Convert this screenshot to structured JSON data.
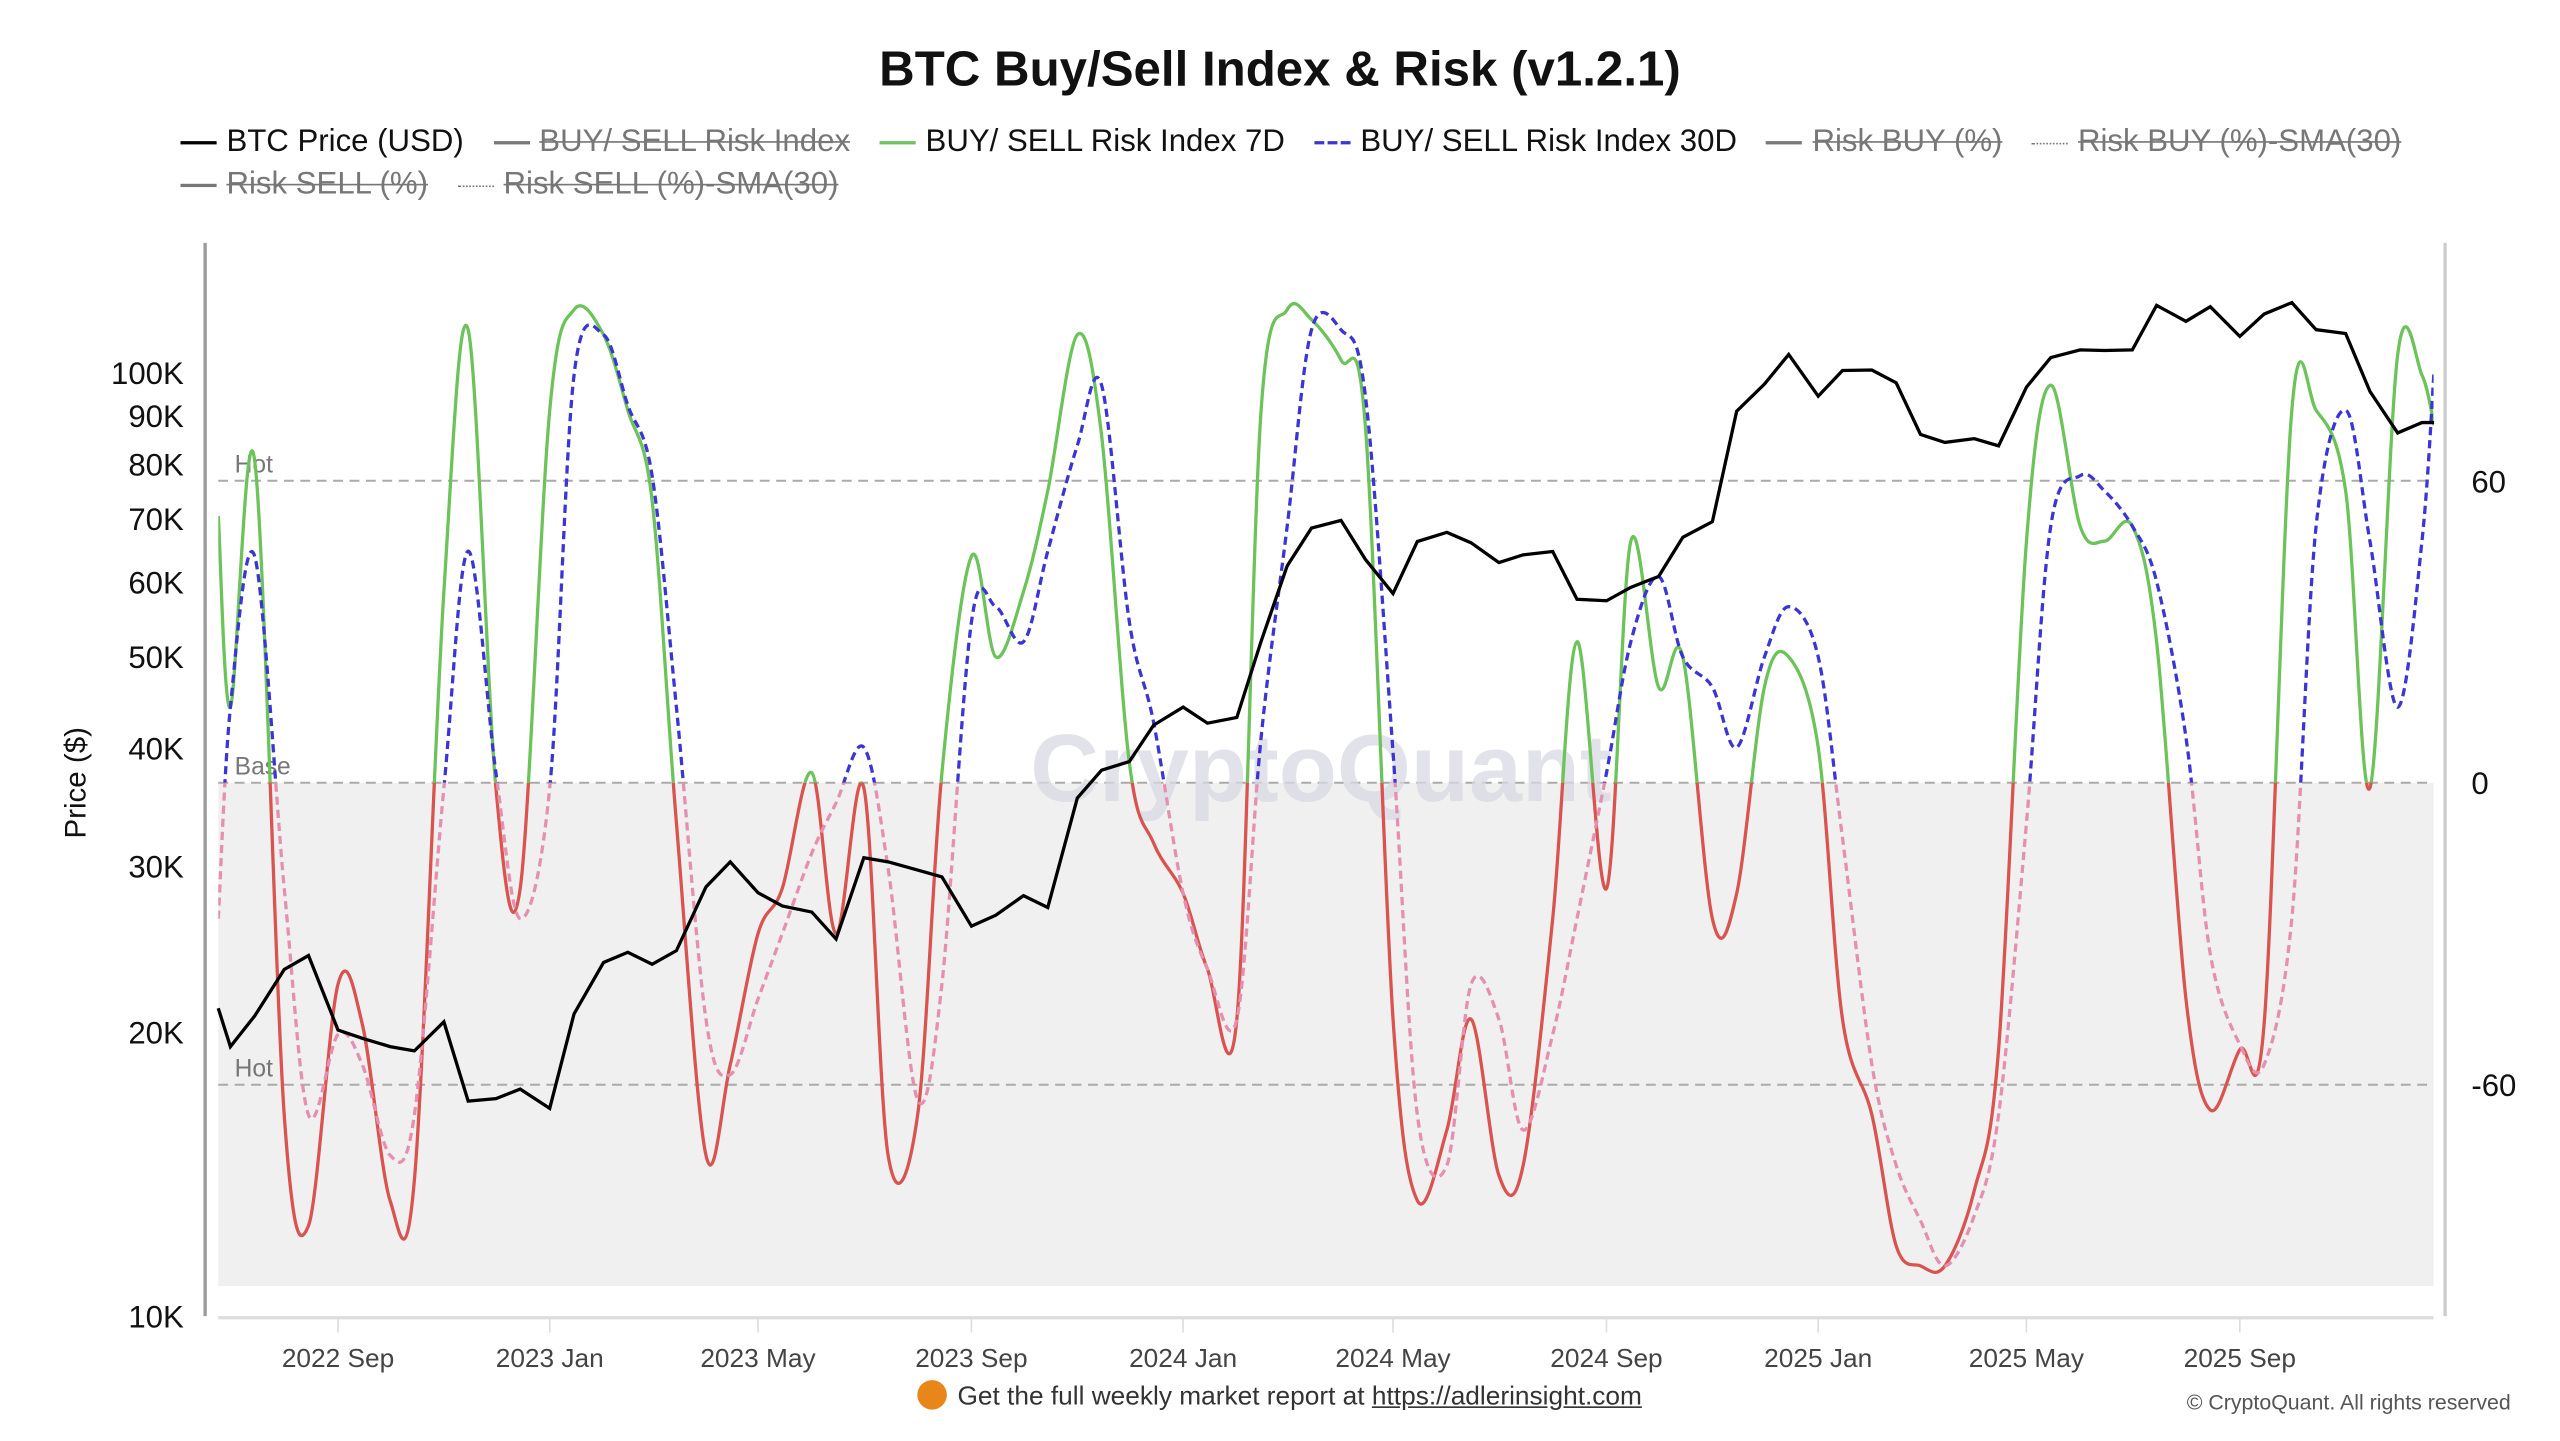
{
  "title": "BTC Buy/Sell Index & Risk (v1.2.1)",
  "legend": [
    {
      "label": "BTC Price (USD)",
      "color": "#000000",
      "style": "solid",
      "visible": true
    },
    {
      "label": "BUY/ SELL Risk Index",
      "color": "#777777",
      "style": "solid",
      "visible": false
    },
    {
      "label": "BUY/ SELL Risk Index 7D",
      "color": "#6cc35a",
      "style": "solid",
      "visible": true
    },
    {
      "label": "BUY/ SELL Risk Index 30D",
      "color": "#3b35d4",
      "style": "dashed",
      "visible": true
    },
    {
      "label": "Risk BUY (%)",
      "color": "#777777",
      "style": "solid",
      "visible": false
    },
    {
      "label": "Risk BUY (%)-SMA(30)",
      "color": "#777777",
      "style": "dotted",
      "visible": false
    },
    {
      "label": "Risk SELL (%)",
      "color": "#777777",
      "style": "solid",
      "visible": false
    },
    {
      "label": "Risk SELL (%)-SMA(30)",
      "color": "#777777",
      "style": "dotted",
      "visible": false
    }
  ],
  "footer": {
    "text": "Get the full weekly market report at",
    "link": "https://adlerinsight.com",
    "copyright": "© CryptoQuant. All rights reserved",
    "watermark": "CryptoQuant"
  },
  "chart_data": {
    "type": "line",
    "title": "BTC Buy/Sell Index & Risk (v1.2.1)",
    "ylabel_left": "Price ($)",
    "left_axis": {
      "scale": "log",
      "range": [
        10000,
        137000
      ],
      "ticks": [
        10000,
        20000,
        30000,
        40000,
        50000,
        60000,
        70000,
        80000,
        90000,
        100000
      ],
      "tick_labels": [
        "10K",
        "20K",
        "30K",
        "40K",
        "50K",
        "60K",
        "70K",
        "80K",
        "90K",
        "100K"
      ]
    },
    "right_axis": {
      "scale": "linear",
      "range": [
        -105,
        107
      ],
      "ticks": [
        -60,
        0,
        60
      ],
      "tick_labels": [
        "-60",
        "0",
        "60"
      ]
    },
    "x_ticks": [
      "2022-09-01",
      "2023-01-01",
      "2023-05-01",
      "2023-09-01",
      "2024-01-01",
      "2024-05-01",
      "2024-09-01",
      "2025-01-01",
      "2025-05-01",
      "2025-09-01"
    ],
    "x_tick_labels": [
      "2022 Sep",
      "2023 Jan",
      "2023 May",
      "2023 Sep",
      "2024 Jan",
      "2024 May",
      "2024 Sep",
      "2025 Jan",
      "2025 May",
      "2025 Sep"
    ],
    "x_range": [
      "2022-06-24",
      "2025-12-22"
    ],
    "bands": [
      {
        "label": "Hot",
        "value": 60
      },
      {
        "label": "Base",
        "value": 0
      },
      {
        "label": "Hot",
        "value": -60
      }
    ],
    "shaded_range": [
      -100,
      0
    ],
    "colors": {
      "price": "#000000",
      "index7d_pos": "#6cc35a",
      "index7d_neg": "#d9534f",
      "index30d_pos": "#3b35d4",
      "index30d_neg": "#e68fb0",
      "shade": "#f0f0f0",
      "band": "#aaaaaa"
    },
    "grid": false,
    "legend_position": "top-left",
    "dates": [
      "2022-06-24",
      "2022-07-01",
      "2022-07-15",
      "2022-08-01",
      "2022-08-15",
      "2022-09-01",
      "2022-09-15",
      "2022-10-01",
      "2022-10-15",
      "2022-11-01",
      "2022-11-15",
      "2022-12-01",
      "2022-12-15",
      "2023-01-01",
      "2023-01-15",
      "2023-02-01",
      "2023-02-15",
      "2023-03-01",
      "2023-03-15",
      "2023-04-01",
      "2023-04-15",
      "2023-05-01",
      "2023-05-15",
      "2023-06-01",
      "2023-06-15",
      "2023-07-01",
      "2023-07-15",
      "2023-08-01",
      "2023-08-15",
      "2023-09-01",
      "2023-09-15",
      "2023-10-01",
      "2023-10-15",
      "2023-11-01",
      "2023-11-15",
      "2023-12-01",
      "2023-12-15",
      "2024-01-01",
      "2024-01-15",
      "2024-02-01",
      "2024-02-15",
      "2024-03-01",
      "2024-03-15",
      "2024-04-01",
      "2024-04-15",
      "2024-05-01",
      "2024-05-15",
      "2024-06-01",
      "2024-06-15",
      "2024-07-01",
      "2024-07-15",
      "2024-08-01",
      "2024-08-15",
      "2024-09-01",
      "2024-09-15",
      "2024-10-01",
      "2024-10-15",
      "2024-11-01",
      "2024-11-15",
      "2024-12-01",
      "2024-12-15",
      "2025-01-01",
      "2025-01-15",
      "2025-02-01",
      "2025-02-15",
      "2025-03-01",
      "2025-03-15",
      "2025-04-01",
      "2025-04-15",
      "2025-05-01",
      "2025-05-15",
      "2025-06-01",
      "2025-06-15",
      "2025-07-01",
      "2025-07-15",
      "2025-08-01",
      "2025-08-15",
      "2025-09-01",
      "2025-09-15",
      "2025-10-01",
      "2025-10-15",
      "2025-11-01",
      "2025-11-15",
      "2025-12-01",
      "2025-12-15",
      "2025-12-22"
    ],
    "series": [
      {
        "name": "BTC Price (USD)",
        "axis": "left",
        "values": [
          21200,
          19300,
          20800,
          23300,
          24100,
          20100,
          19700,
          19300,
          19100,
          20500,
          16900,
          17000,
          17400,
          16600,
          20900,
          23700,
          24300,
          23600,
          24400,
          28500,
          30300,
          28100,
          27200,
          26800,
          25100,
          30600,
          30300,
          29700,
          29200,
          25900,
          26600,
          27900,
          27100,
          35400,
          37900,
          38700,
          42300,
          44200,
          42500,
          43100,
          51900,
          62400,
          68400,
          69700,
          63400,
          58300,
          66200,
          67700,
          66000,
          62900,
          64100,
          64600,
          57500,
          57300,
          59200,
          60800,
          66900,
          69500,
          91000,
          97200,
          104500,
          94400,
          100500,
          100600,
          97500,
          86000,
          84300,
          85100,
          83600,
          96500,
          103700,
          105700,
          105500,
          105700,
          117800,
          113300,
          117400,
          109200,
          115300,
          118600,
          111000,
          110000,
          95500,
          86300,
          88500,
          88500
        ]
      },
      {
        "name": "BUY/ SELL Risk Index 7D",
        "axis": "right",
        "values": [
          53,
          15,
          64,
          -66,
          -88,
          -40,
          -48,
          -83,
          -79,
          38,
          90,
          -1,
          -21,
          74,
          94,
          89,
          74,
          56,
          -8,
          -74,
          -56,
          -30,
          -21,
          2,
          -30,
          -1,
          -74,
          -66,
          2,
          45,
          25,
          38,
          58,
          89,
          69,
          4,
          -12,
          -22,
          -37,
          -47,
          74,
          94,
          92,
          84,
          71,
          -47,
          -83,
          -69,
          -47,
          -78,
          -76,
          -27,
          28,
          -21,
          48,
          19,
          25,
          -27,
          -22,
          19,
          25,
          7,
          -47,
          -66,
          -92,
          -96,
          -96,
          -81,
          -53,
          48,
          79,
          51,
          48,
          51,
          28,
          -43,
          -65,
          -53,
          -48,
          74,
          74,
          58,
          -1,
          85,
          81,
          71
        ]
      },
      {
        "name": "BUY/ SELL Risk Index 30D",
        "axis": "right",
        "values": [
          -27,
          15,
          45,
          -21,
          -66,
          -50,
          -56,
          -74,
          -66,
          -1,
          46,
          2,
          -27,
          -1,
          81,
          89,
          75,
          61,
          15,
          -47,
          -58,
          -43,
          -30,
          -14,
          -4,
          7,
          -17,
          -63,
          -40,
          32,
          35,
          28,
          46,
          67,
          79,
          32,
          12,
          -22,
          -37,
          -47,
          9,
          51,
          90,
          90,
          77,
          6,
          -66,
          -76,
          -40,
          -47,
          -69,
          -50,
          -27,
          2,
          28,
          41,
          25,
          19,
          7,
          25,
          35,
          25,
          -11,
          -56,
          -76,
          -87,
          -96,
          -86,
          -66,
          -8,
          51,
          61,
          58,
          51,
          40,
          9,
          -34,
          -52,
          -56,
          -27,
          51,
          74,
          48,
          15,
          48,
          82
        ]
      }
    ]
  }
}
